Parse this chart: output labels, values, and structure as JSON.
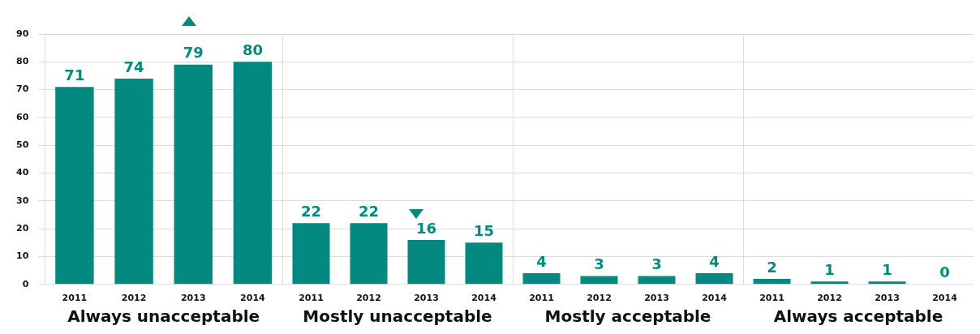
{
  "chart_data": [
    {
      "type": "bar",
      "categories": [
        "2011",
        "2012",
        "2013",
        "2014"
      ],
      "values": [
        71,
        74,
        79,
        80
      ],
      "color": "#03897f",
      "xlabel": "Always unacceptable",
      "ylim": [
        0,
        90
      ],
      "yticks": [
        0,
        10,
        20,
        30,
        40,
        50,
        60,
        70,
        80,
        90
      ],
      "grid": "y",
      "data_labels": true
    },
    {
      "type": "bar",
      "categories": [
        "2011",
        "2012",
        "2013",
        "2014"
      ],
      "values": [
        22,
        22,
        16,
        15
      ],
      "color": "#03897f",
      "xlabel": "Mostly unacceptable",
      "ylim": [
        0,
        90
      ],
      "yticks": [
        0,
        10,
        20,
        30,
        40,
        50,
        60,
        70,
        80,
        90
      ],
      "grid": "y",
      "data_labels": true,
      "tick_labels": "x"
    },
    {
      "type": "bar",
      "categories": [
        "2011",
        "2012",
        "2013",
        "2014"
      ],
      "values": [
        4,
        3,
        3,
        4
      ],
      "color": "#03897f",
      "xlabel": "Mostly acceptable",
      "ylim": [
        0,
        90
      ],
      "yticks": [
        0,
        10,
        20,
        30,
        40,
        50,
        60,
        70,
        80,
        90
      ],
      "grid": "y",
      "data_labels": true,
      "tick_labels": "x"
    },
    {
      "type": "bar",
      "categories": [
        "2011",
        "2012",
        "2013",
        "2014"
      ],
      "values": [
        2,
        1,
        1,
        0
      ],
      "color": "#03897f",
      "xlabel": "Always acceptable",
      "ylim": [
        0,
        90
      ],
      "yticks": [
        0,
        10,
        20,
        30,
        40,
        50,
        60,
        70,
        80,
        90
      ],
      "grid": "y",
      "data_labels": true,
      "tick_labels": "x"
    }
  ]
}
